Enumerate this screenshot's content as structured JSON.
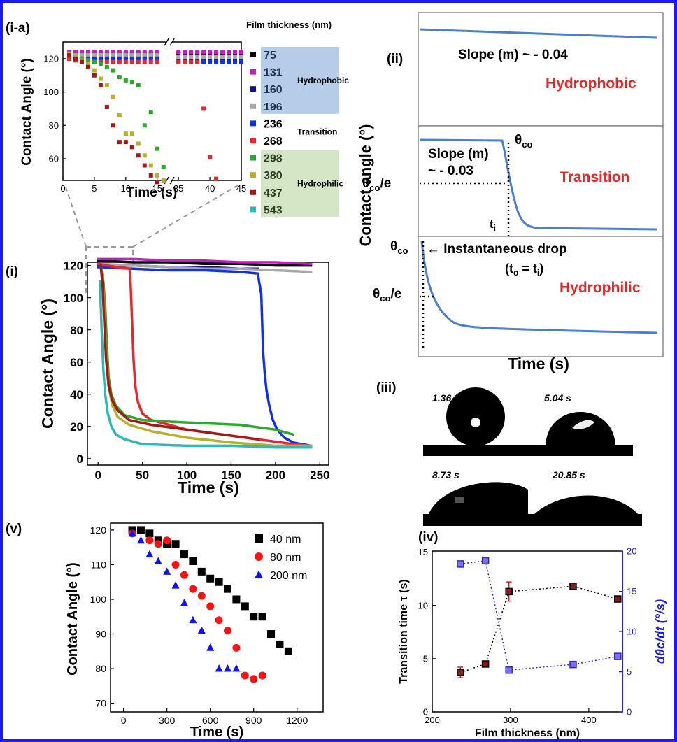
{
  "chart_data": [
    {
      "type": "scatter",
      "label": "(i-a)",
      "x_title": "Time (s)",
      "y_title": "Contact Angle (°)",
      "xlim": [
        0,
        45
      ],
      "xbreak": [
        16.5,
        34
      ],
      "xticks": [
        0,
        5,
        10,
        15,
        35,
        40,
        45
      ],
      "ylim": [
        47,
        130
      ],
      "yticks": [
        60,
        80,
        100,
        120
      ],
      "legend": "right",
      "legend_title": "Film thickness (nm)",
      "legend_groups": [
        {
          "label": "Hydrophobic",
          "color": "#b5cde9"
        },
        {
          "label": "Transition"
        },
        {
          "label": "Hydrophilic",
          "color": "#d4e6c6"
        }
      ],
      "series": [
        {
          "name": "75",
          "color": "#000000",
          "x": [
            1,
            2,
            3,
            4,
            5,
            6,
            7,
            8,
            9,
            10,
            11,
            12,
            13,
            14,
            15,
            35,
            36,
            37,
            38,
            39,
            40,
            41,
            42,
            43,
            44,
            45
          ],
          "values": [
            124,
            124,
            124,
            123,
            123,
            123,
            123,
            123,
            123,
            123,
            123,
            123,
            123,
            123,
            123,
            123,
            123,
            123,
            123,
            123,
            123,
            123,
            123,
            123,
            123,
            123
          ]
        },
        {
          "name": "131",
          "color": "#c21fc2",
          "x": [
            1,
            2,
            3,
            4,
            5,
            6,
            7,
            8,
            9,
            10,
            11,
            12,
            13,
            14,
            15,
            35,
            36,
            37,
            38,
            39,
            40,
            41,
            42,
            43,
            44,
            45
          ],
          "values": [
            124,
            124,
            124,
            124,
            124,
            124,
            124,
            124,
            124,
            124,
            124,
            124,
            124,
            124,
            124,
            124,
            124,
            124,
            124,
            124,
            124,
            124,
            124,
            124,
            124,
            124
          ]
        },
        {
          "name": "160",
          "color": "#10108a",
          "x": [
            1,
            2,
            3,
            4,
            5,
            6,
            7,
            8,
            9,
            10,
            11,
            12,
            13,
            14,
            15,
            35,
            36,
            37,
            38,
            39,
            40,
            41,
            42,
            43,
            44,
            45
          ],
          "values": [
            121,
            121,
            121,
            121,
            121,
            121,
            121,
            121,
            121,
            121,
            121,
            121,
            121,
            121,
            121,
            119,
            119,
            119,
            119,
            119,
            119,
            119,
            119,
            119,
            119,
            119
          ]
        },
        {
          "name": "196",
          "color": "#a8a8a8",
          "x": [
            1,
            2,
            3,
            4,
            5,
            6,
            7,
            8,
            9,
            10,
            11,
            12,
            13,
            14,
            15,
            35,
            36,
            37,
            38,
            39,
            40,
            41,
            42,
            43,
            44,
            45
          ],
          "values": [
            122,
            122,
            122,
            122,
            122,
            122,
            122,
            122,
            122,
            122,
            122,
            122,
            122,
            122,
            122,
            121,
            121,
            121,
            121,
            121,
            121,
            121,
            121,
            121,
            121,
            121
          ]
        },
        {
          "name": "236",
          "color": "#1030f0",
          "x": [
            1,
            2,
            3,
            4,
            5,
            6,
            7,
            8,
            9,
            10,
            11,
            12,
            13,
            14,
            15,
            35,
            36,
            37,
            38,
            39,
            40,
            41,
            42,
            43,
            44,
            45
          ],
          "values": [
            120,
            120,
            120,
            120,
            120,
            120,
            120,
            120,
            120,
            120,
            120,
            120,
            120,
            120,
            120,
            118,
            118,
            118,
            118,
            118,
            118,
            118,
            118,
            118,
            118,
            118
          ]
        },
        {
          "name": "268",
          "color": "#e8262b",
          "x": [
            1,
            2,
            3,
            4,
            5,
            6,
            7,
            8,
            9,
            10,
            11,
            12,
            13,
            14,
            15,
            35,
            36,
            37,
            38,
            39,
            40,
            41
          ],
          "values": [
            120,
            119,
            119,
            119,
            118,
            118,
            118,
            118,
            118,
            118,
            118,
            118,
            118,
            118,
            118,
            118,
            118,
            118,
            118,
            90,
            61,
            48
          ]
        },
        {
          "name": "298",
          "color": "#2fa82f",
          "x": [
            1,
            2,
            3,
            4,
            5,
            6,
            7,
            8,
            9,
            10,
            11,
            12,
            13,
            14,
            15,
            16
          ],
          "values": [
            122,
            121,
            120,
            119,
            118,
            117,
            115,
            113,
            109,
            107,
            106,
            104,
            80,
            88,
            66,
            55
          ]
        },
        {
          "name": "380",
          "color": "#b8b02a",
          "x": [
            1,
            2,
            3,
            4,
            5,
            6,
            7,
            8,
            9,
            10,
            11,
            12,
            13,
            14,
            15,
            16
          ],
          "values": [
            123,
            121,
            119,
            117,
            113,
            108,
            104,
            97,
            86,
            75,
            75,
            69,
            62,
            56,
            50,
            47
          ]
        },
        {
          "name": "437",
          "color": "#a31818",
          "x": [
            1,
            2,
            3,
            4,
            5,
            6,
            7,
            8,
            9,
            10,
            11,
            12,
            13,
            14,
            15
          ],
          "values": [
            122,
            120,
            118,
            115,
            110,
            104,
            91,
            80,
            70,
            70,
            67,
            62,
            56,
            50,
            46
          ]
        },
        {
          "name": "543",
          "color": "#2fb8b8"
        }
      ]
    },
    {
      "type": "line",
      "label": "(i)",
      "x_title": "Time (s)",
      "y_title": "Contact Angle (°)",
      "xlim": [
        -12,
        260
      ],
      "xticks": [
        0,
        50,
        100,
        150,
        200,
        250
      ],
      "ylim": [
        -4,
        122
      ],
      "yticks": [
        0,
        20,
        40,
        60,
        80,
        100,
        120
      ],
      "series": [
        {
          "color": "#000000",
          "x": [
            0,
            40,
            80,
            120,
            160,
            200,
            240
          ],
          "values": [
            123,
            122,
            122,
            121,
            121,
            120,
            120
          ]
        },
        {
          "color": "#c21fc2",
          "x": [
            0,
            40,
            80,
            120,
            160,
            200,
            240
          ],
          "values": [
            124,
            124,
            123,
            123,
            122,
            122,
            121
          ]
        },
        {
          "color": "#10108a",
          "x": [
            0,
            40,
            80,
            120,
            160,
            180
          ],
          "values": [
            120,
            120,
            119,
            119,
            118,
            118
          ]
        },
        {
          "color": "#a8a8a8",
          "x": [
            0,
            40,
            80,
            120,
            160,
            200,
            240
          ],
          "values": [
            121,
            120,
            119,
            118,
            118,
            117,
            116
          ]
        },
        {
          "color": "#1030f0",
          "x": [
            0,
            40,
            80,
            120,
            160,
            180,
            184,
            186,
            188,
            190,
            193,
            197,
            202,
            210,
            220,
            240
          ],
          "values": [
            119,
            118,
            117,
            117,
            116,
            115,
            102,
            67,
            52,
            42,
            33,
            24,
            18,
            13,
            10,
            8
          ]
        },
        {
          "color": "#e8262b",
          "x": [
            0,
            20,
            36,
            38,
            40,
            42,
            45,
            50,
            60,
            80,
            100,
            140,
            180,
            220,
            240
          ],
          "values": [
            121,
            119,
            118,
            90,
            61,
            45,
            35,
            28,
            24,
            21,
            18,
            15,
            12,
            9,
            8
          ]
        },
        {
          "color": "#2fa82f",
          "x": [
            3,
            6,
            8,
            10,
            12,
            15,
            20,
            30,
            50,
            80,
            120,
            160,
            200,
            220
          ],
          "values": [
            120,
            110,
            95,
            70,
            50,
            40,
            33,
            27,
            24,
            23,
            22,
            21,
            18,
            15
          ]
        },
        {
          "color": "#b8b02a",
          "x": [
            3,
            5,
            7,
            9,
            12,
            16,
            22,
            35,
            60,
            100,
            150,
            200,
            240
          ],
          "values": [
            120,
            112,
            90,
            65,
            45,
            33,
            26,
            21,
            17,
            13,
            10,
            8,
            8
          ]
        },
        {
          "color": "#a31818",
          "x": [
            3,
            5,
            7,
            9,
            12,
            16,
            22,
            35,
            60,
            100,
            140,
            180
          ],
          "values": [
            120,
            108,
            85,
            62,
            45,
            36,
            30,
            24,
            21,
            18,
            15,
            12
          ]
        },
        {
          "color": "#2fb8b8",
          "x": [
            2,
            4,
            6,
            8,
            11,
            15,
            20,
            30,
            50,
            100,
            150,
            200,
            240
          ],
          "values": [
            110,
            80,
            55,
            40,
            28,
            20,
            15,
            12,
            9,
            8,
            8,
            7,
            7
          ]
        }
      ]
    },
    {
      "type": "scatter",
      "label": "(v)",
      "x_title": "Time (s)",
      "y_title": "Contact Angle (°)",
      "xlim": [
        -90,
        1380
      ],
      "xticks": [
        0,
        300,
        600,
        900,
        1200
      ],
      "ylim": [
        67.5,
        122
      ],
      "yticks": [
        70,
        80,
        90,
        100,
        110,
        120
      ],
      "legend": "upper right",
      "series": [
        {
          "name": "40 nm",
          "color": "#000000",
          "marker": "square",
          "x": [
            60,
            120,
            180,
            240,
            300,
            360,
            420,
            480,
            540,
            600,
            660,
            720,
            780,
            840,
            900,
            960,
            1020,
            1080,
            1140
          ],
          "values": [
            120,
            120,
            119,
            117,
            116,
            116,
            113,
            111,
            108,
            106,
            105,
            103,
            100,
            98,
            95,
            95,
            90,
            87,
            85
          ]
        },
        {
          "name": "80 nm",
          "color": "#ff1010",
          "marker": "circle",
          "x": [
            60,
            180,
            240,
            300,
            360,
            420,
            480,
            540,
            600,
            660,
            720,
            780,
            840,
            900,
            960
          ],
          "values": [
            119,
            117,
            116,
            117,
            110,
            107,
            103,
            101,
            98,
            94,
            91,
            86,
            78,
            77,
            78
          ]
        },
        {
          "name": "200 nm",
          "color": "#1010ff",
          "marker": "triangle",
          "x": [
            60,
            120,
            180,
            240,
            300,
            360,
            420,
            480,
            540,
            600,
            660,
            720,
            780
          ],
          "values": [
            119,
            117,
            113,
            111,
            108,
            104,
            99,
            94,
            91,
            86,
            80,
            80,
            80
          ]
        }
      ]
    },
    {
      "type": "scatter",
      "label": "(iv)",
      "x_title": "Film thickness (nm)",
      "y_title": "Transition time τ (s)",
      "y2_title": "dθc/dt (°/s)",
      "xlim": [
        200,
        443
      ],
      "xticks": [
        200,
        300,
        400
      ],
      "ylim": [
        0,
        15.1
      ],
      "yticks": [
        0,
        5,
        10,
        15
      ],
      "y2lim": [
        0,
        20
      ],
      "y2ticks": [
        0,
        5,
        10,
        15,
        20
      ],
      "y2_color": "#1a1aee",
      "series": [
        {
          "color": "#8b1a1a",
          "edgecolor": "#000000",
          "linestyle": "dotted",
          "error_color": "#e02020",
          "x": [
            236,
            268,
            298,
            380,
            437
          ],
          "values": [
            3.7,
            4.5,
            11.3,
            11.8,
            10.6
          ],
          "error": [
            0.5,
            0.2,
            0.9,
            0.3,
            0.2
          ]
        },
        {
          "color": "#7f6ff5",
          "edgecolor": "#2a2ad0",
          "linestyle": "dotted",
          "axis": "y2",
          "x": [
            236,
            268,
            298,
            380,
            437
          ],
          "values": [
            18.4,
            18.8,
            5.2,
            5.9,
            6.9
          ]
        }
      ]
    }
  ],
  "schematic": {
    "label": "(ii)",
    "y_title": "Contact angle (°)",
    "x_title": "Time (s)",
    "hydrophobic": {
      "slope": "Slope (m) ~ - 0.04",
      "regime": "Hydrophobic"
    },
    "transition": {
      "slope_1": "Slope (m)",
      "slope_2": "~ - 0.03",
      "theta_co": {
        "main": "θ",
        "sub": "co"
      },
      "theta_e": {
        "main": "θ",
        "sub": "co",
        "rest": "/e"
      },
      "t_i": {
        "main": "t",
        "sub": "i"
      },
      "regime": "Transition"
    },
    "hydrophilic": {
      "theta_co": {
        "main": "θ",
        "sub": "co"
      },
      "drop": "← Instantaneous drop",
      "equal": {
        "open": "(t",
        "sub1": "o",
        "mid": " = t",
        "sub2": "i",
        "close": ")"
      },
      "theta_e": {
        "main": "θ",
        "sub": "co",
        "rest": "/e"
      },
      "regime": "Hydrophilic"
    }
  },
  "images": {
    "label": "(iii)",
    "times": [
      "1.36 s",
      "5.04 s",
      "8.73 s",
      "20.85 s"
    ]
  }
}
